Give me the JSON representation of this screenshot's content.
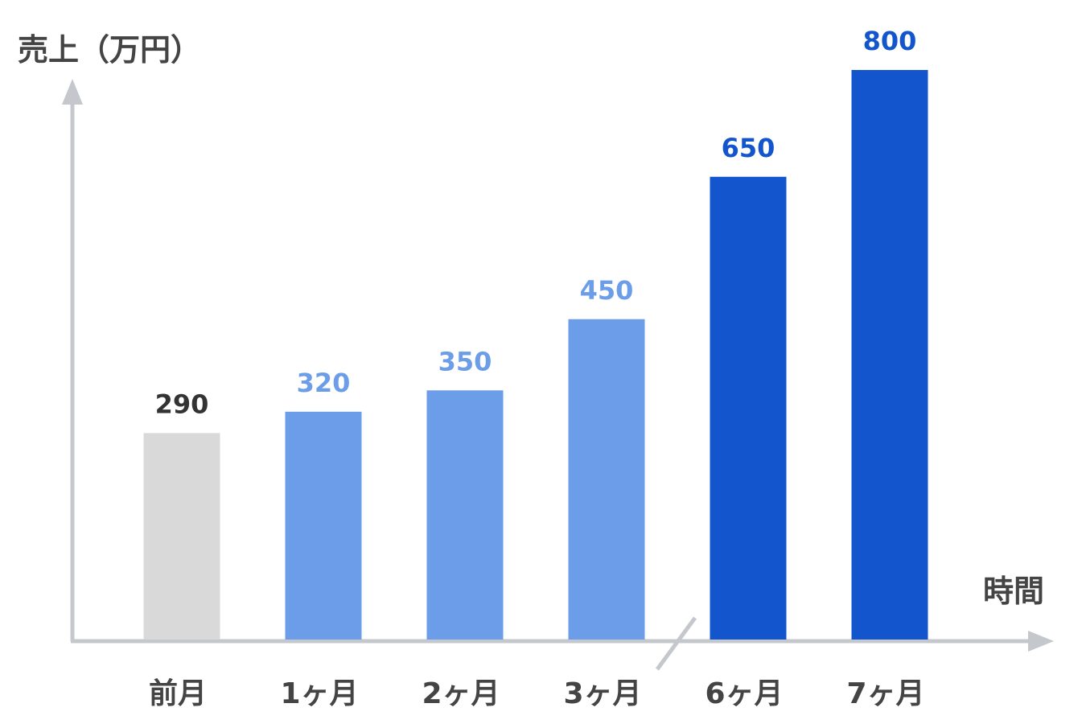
{
  "chart_data": {
    "type": "bar",
    "ylabel": "売上（万円）",
    "xlabel": "時間",
    "categories": [
      "前月",
      "1ヶ月",
      "2ヶ月",
      "3ヶ月",
      "6ヶ月",
      "7ヶ月"
    ],
    "values": [
      290,
      320,
      350,
      450,
      650,
      800
    ],
    "value_labels": [
      "290",
      "320",
      "350",
      "450",
      "650",
      "800"
    ],
    "bar_colors": [
      "#d9d9d9",
      "#6b9de8",
      "#6b9de8",
      "#6b9de8",
      "#1355cc",
      "#1355cc"
    ],
    "label_colors": [
      "#333333",
      "#6b9de8",
      "#6b9de8",
      "#6b9de8",
      "#1355cc",
      "#1355cc"
    ],
    "axis_color": "#c4c8cc",
    "axis_break_between": [
      "3ヶ月",
      "6ヶ月"
    ],
    "grid": false,
    "legend": "none"
  }
}
